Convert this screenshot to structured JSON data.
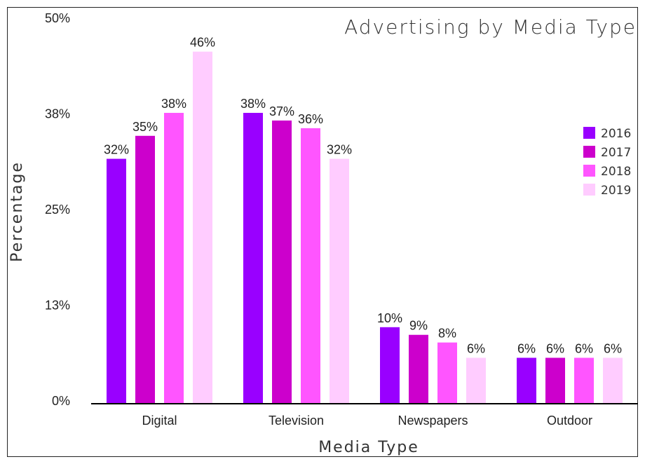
{
  "chart_data": {
    "type": "bar",
    "title": "Advertising by Media Type",
    "xlabel": "Media Type",
    "ylabel": "Percentage",
    "categories": [
      "Digital",
      "Television",
      "Newspapers",
      "Outdoor"
    ],
    "series": [
      {
        "name": "2016",
        "values": [
          32,
          38,
          10,
          6
        ],
        "labels": [
          "32%",
          "38%",
          "10%",
          "6%"
        ],
        "color": "#9900ff"
      },
      {
        "name": "2017",
        "values": [
          35,
          37,
          9,
          6
        ],
        "labels": [
          "35%",
          "37%",
          "9%",
          "6%"
        ],
        "color": "#cc00cc"
      },
      {
        "name": "2018",
        "values": [
          38,
          36,
          8,
          6
        ],
        "labels": [
          "38%",
          "36%",
          "8%",
          "6%"
        ],
        "color": "#ff55ff"
      },
      {
        "name": "2019",
        "values": [
          46,
          32,
          6,
          6
        ],
        "labels": [
          "46%",
          "32%",
          "6%",
          "6%"
        ],
        "color": "#ffccff"
      }
    ],
    "ylim": [
      0,
      50
    ],
    "yticks": [
      0,
      12.5,
      25,
      37.5,
      50
    ],
    "ytick_labels": [
      "0%",
      "13%",
      "25%",
      "38%",
      "50%"
    ],
    "grid": false,
    "legend_position": "right"
  }
}
